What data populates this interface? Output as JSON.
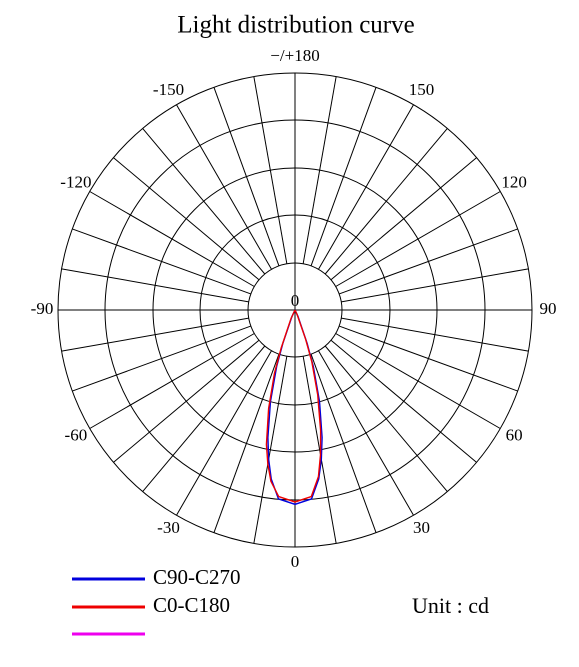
{
  "chart_data": {
    "type": "polar",
    "title": "Light distribution curve",
    "theta": [
      -30,
      -25,
      -20,
      -18,
      -15,
      -12,
      -10,
      -8,
      -5,
      0,
      5,
      8,
      10,
      12,
      15,
      18,
      20,
      25,
      30
    ],
    "series": [
      {
        "name": "C90-C270",
        "color": "#0000dd",
        "values": [
          0,
          3,
          15,
          25,
          40,
          55,
          64,
          72,
          80,
          82,
          80,
          72,
          64,
          55,
          40,
          25,
          15,
          3,
          0
        ]
      },
      {
        "name": "C0-C180",
        "color": "#ee0000",
        "values": [
          0,
          4,
          17,
          28,
          43,
          58,
          66,
          73,
          79,
          81,
          79,
          71,
          62,
          52,
          37,
          23,
          13,
          2,
          0
        ]
      }
    ],
    "rlim": [
      0,
      100
    ],
    "rticks": [
      0
    ],
    "thetaticks": [
      0,
      30,
      60,
      90,
      120,
      150,
      {
        "value": 180,
        "label": "−/+180"
      },
      -150,
      -120,
      -90,
      -60,
      -30
    ],
    "unit_label": "Unit : cd"
  }
}
